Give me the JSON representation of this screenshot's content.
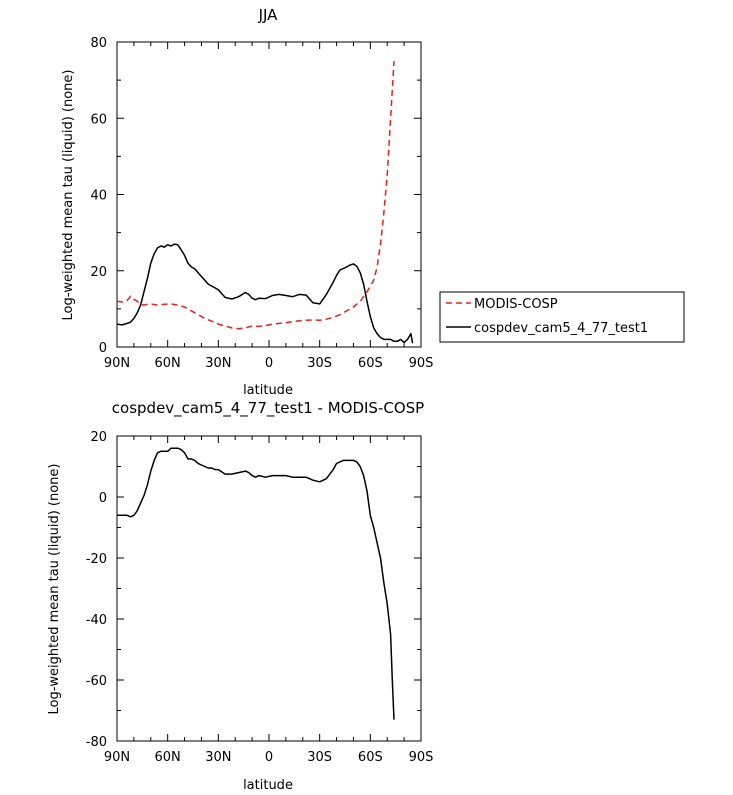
{
  "chart_data": [
    {
      "type": "line",
      "title": "JJA",
      "xlabel": "latitude",
      "ylabel": "Log-weighted mean tau (liquid) (none)",
      "xlim": [
        90,
        -90
      ],
      "ylim": [
        0,
        80
      ],
      "x_ticks": [
        90,
        60,
        30,
        0,
        -30,
        -60,
        -90
      ],
      "x_tick_labels": [
        "90N",
        "60N",
        "30N",
        "0",
        "30S",
        "60S",
        "90S"
      ],
      "y_ticks": [
        0,
        20,
        40,
        60,
        80
      ],
      "y_tick_labels": [
        "0",
        "20",
        "40",
        "60",
        "80"
      ],
      "legend": {
        "position": "right"
      },
      "series": [
        {
          "name": "MODIS-COSP",
          "color": "#e8201a",
          "dash": "dashed",
          "x": [
            90,
            87,
            84,
            82,
            80,
            78,
            76,
            74,
            72,
            70,
            66,
            62,
            58,
            54,
            50,
            46,
            42,
            38,
            34,
            30,
            26,
            22,
            18,
            14,
            10,
            6,
            2,
            -2,
            -6,
            -10,
            -14,
            -18,
            -22,
            -26,
            -30,
            -34,
            -38,
            -42,
            -46,
            -50,
            -54,
            -58,
            -62,
            -64,
            -66,
            -68,
            -70,
            -72,
            -74
          ],
          "y": [
            12.0,
            11.8,
            12.2,
            13.3,
            12.5,
            12.0,
            11.2,
            11.0,
            11.2,
            11.3,
            11.0,
            11.2,
            11.3,
            11.0,
            10.5,
            9.5,
            8.5,
            7.5,
            6.8,
            6.0,
            5.5,
            5.0,
            4.8,
            5.0,
            5.5,
            5.4,
            5.6,
            6.0,
            6.2,
            6.4,
            6.6,
            6.9,
            7.0,
            7.1,
            7.0,
            7.3,
            7.8,
            8.5,
            9.5,
            10.5,
            12.0,
            14.5,
            17.5,
            21.0,
            27.0,
            35.0,
            45.0,
            60.0,
            75.0
          ]
        },
        {
          "name": "cospdev_cam5_4_77_test1",
          "color": "#000000",
          "dash": "solid",
          "x": [
            90,
            87,
            84,
            82,
            80,
            78,
            76,
            74,
            72,
            70,
            68,
            66,
            64,
            62,
            60,
            58,
            56,
            54,
            52,
            50,
            48,
            46,
            44,
            42,
            40,
            38,
            36,
            34,
            32,
            30,
            26,
            22,
            18,
            14,
            12,
            10,
            8,
            6,
            2,
            -2,
            -6,
            -10,
            -14,
            -18,
            -22,
            -26,
            -30,
            -34,
            -38,
            -40,
            -42,
            -44,
            -46,
            -48,
            -50,
            -52,
            -54,
            -56,
            -58,
            -60,
            -62,
            -64,
            -66,
            -68,
            -70,
            -72,
            -74,
            -76,
            -78,
            -80,
            -82,
            -84,
            -85
          ],
          "y": [
            6.0,
            5.8,
            6.2,
            6.5,
            7.5,
            9.0,
            11.0,
            14.5,
            18.0,
            22.0,
            24.5,
            26.0,
            26.5,
            26.2,
            26.8,
            26.5,
            27.0,
            26.8,
            25.5,
            24.0,
            22.0,
            21.0,
            20.5,
            19.5,
            18.5,
            17.5,
            16.5,
            16.0,
            15.5,
            15.0,
            13.0,
            12.6,
            13.2,
            14.3,
            13.8,
            12.8,
            12.4,
            12.8,
            12.7,
            13.5,
            13.8,
            13.5,
            13.2,
            13.8,
            13.6,
            11.6,
            11.3,
            13.8,
            17.0,
            18.8,
            20.2,
            20.6,
            21.0,
            21.5,
            21.8,
            21.2,
            19.5,
            16.5,
            12.0,
            8.0,
            5.0,
            3.5,
            2.5,
            2.0,
            2.0,
            2.0,
            1.5,
            1.5,
            2.0,
            1.2,
            2.0,
            3.5,
            1.0
          ]
        }
      ]
    },
    {
      "type": "line",
      "title": "cospdev_cam5_4_77_test1 - MODIS-COSP",
      "xlabel": "latitude",
      "ylabel": "Log-weighted mean tau (liquid) (none)",
      "xlim": [
        90,
        -90
      ],
      "ylim": [
        -80,
        20
      ],
      "x_ticks": [
        90,
        60,
        30,
        0,
        -30,
        -60,
        -90
      ],
      "x_tick_labels": [
        "90N",
        "60N",
        "30N",
        "0",
        "30S",
        "60S",
        "90S"
      ],
      "y_ticks": [
        -80,
        -60,
        -40,
        -20,
        0,
        20
      ],
      "y_tick_labels": [
        "-80",
        "-60",
        "-40",
        "-20",
        "0",
        "20"
      ],
      "series": [
        {
          "color": "#000000",
          "dash": "solid",
          "x": [
            90,
            87,
            84,
            82,
            80,
            78,
            76,
            74,
            72,
            70,
            68,
            66,
            64,
            62,
            60,
            58,
            56,
            54,
            52,
            50,
            48,
            46,
            44,
            42,
            40,
            38,
            36,
            34,
            32,
            30,
            26,
            22,
            18,
            14,
            12,
            10,
            8,
            6,
            2,
            -2,
            -6,
            -10,
            -14,
            -18,
            -22,
            -26,
            -30,
            -34,
            -38,
            -40,
            -42,
            -44,
            -46,
            -48,
            -50,
            -52,
            -54,
            -56,
            -58,
            -60,
            -62,
            -64,
            -66,
            -68,
            -70,
            -72,
            -73,
            -74
          ],
          "y": [
            -6.0,
            -6.0,
            -6.0,
            -6.5,
            -6.0,
            -4.5,
            -2.0,
            0.5,
            4.0,
            8.5,
            12.0,
            14.5,
            15.0,
            15.0,
            15.0,
            16.0,
            16.0,
            16.0,
            15.5,
            14.5,
            12.5,
            12.5,
            12.0,
            11.0,
            10.5,
            10.0,
            9.5,
            9.5,
            9.0,
            9.0,
            7.5,
            7.5,
            8.0,
            8.5,
            8.0,
            7.0,
            6.5,
            7.0,
            6.5,
            7.0,
            7.0,
            7.0,
            6.5,
            6.5,
            6.5,
            5.5,
            5.0,
            6.0,
            9.0,
            11.0,
            11.5,
            12.0,
            12.0,
            12.0,
            12.0,
            11.5,
            10.0,
            7.0,
            2.0,
            -6.0,
            -10.0,
            -15.0,
            -20.0,
            -28.0,
            -35.0,
            -45.0,
            -60.0,
            -73.0
          ]
        }
      ]
    }
  ]
}
